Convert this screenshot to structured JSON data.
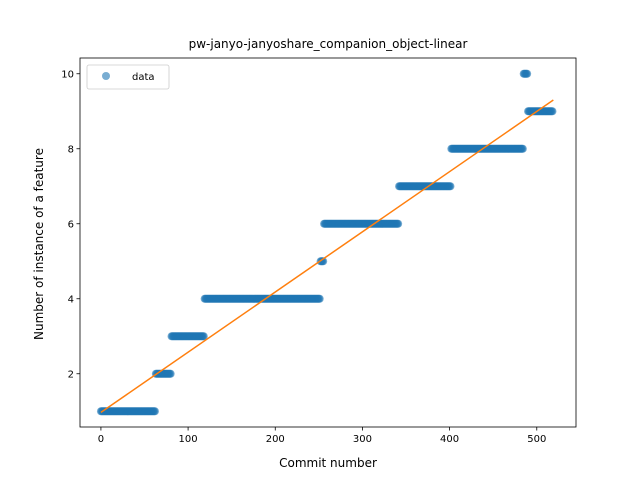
{
  "chart_data": {
    "type": "scatter",
    "title": "pw-janyo-janyoshare_companion_object-linear",
    "xlabel": "Commit number",
    "ylabel": "Number of instance of a feature",
    "xlim": [
      -24,
      545
    ],
    "ylim": [
      0.58,
      10.42
    ],
    "xticks": [
      0,
      100,
      200,
      300,
      400,
      500
    ],
    "yticks": [
      2,
      4,
      6,
      8,
      10
    ],
    "grid": false,
    "legend": {
      "position": "top-left",
      "entries": [
        "data"
      ]
    },
    "colors": {
      "points": "#1f77b4",
      "fit_line": "#ff7f0e"
    },
    "series": [
      {
        "name": "data",
        "kind": "points",
        "segments": [
          {
            "x_start": 0,
            "x_end": 63,
            "y": 1
          },
          {
            "x_start": 63,
            "x_end": 81,
            "y": 2
          },
          {
            "x_start": 81,
            "x_end": 119,
            "y": 3
          },
          {
            "x_start": 119,
            "x_end": 252,
            "y": 4
          },
          {
            "x_start": 252,
            "x_end": 256,
            "y": 5
          },
          {
            "x_start": 256,
            "x_end": 342,
            "y": 6
          },
          {
            "x_start": 342,
            "x_end": 402,
            "y": 7
          },
          {
            "x_start": 402,
            "x_end": 485,
            "y": 8
          },
          {
            "x_start": 485,
            "x_end": 490,
            "y": 10
          },
          {
            "x_start": 490,
            "x_end": 519,
            "y": 9
          }
        ]
      },
      {
        "kind": "line",
        "x": [
          0,
          519
        ],
        "y": [
          0.97,
          9.3
        ]
      }
    ]
  }
}
